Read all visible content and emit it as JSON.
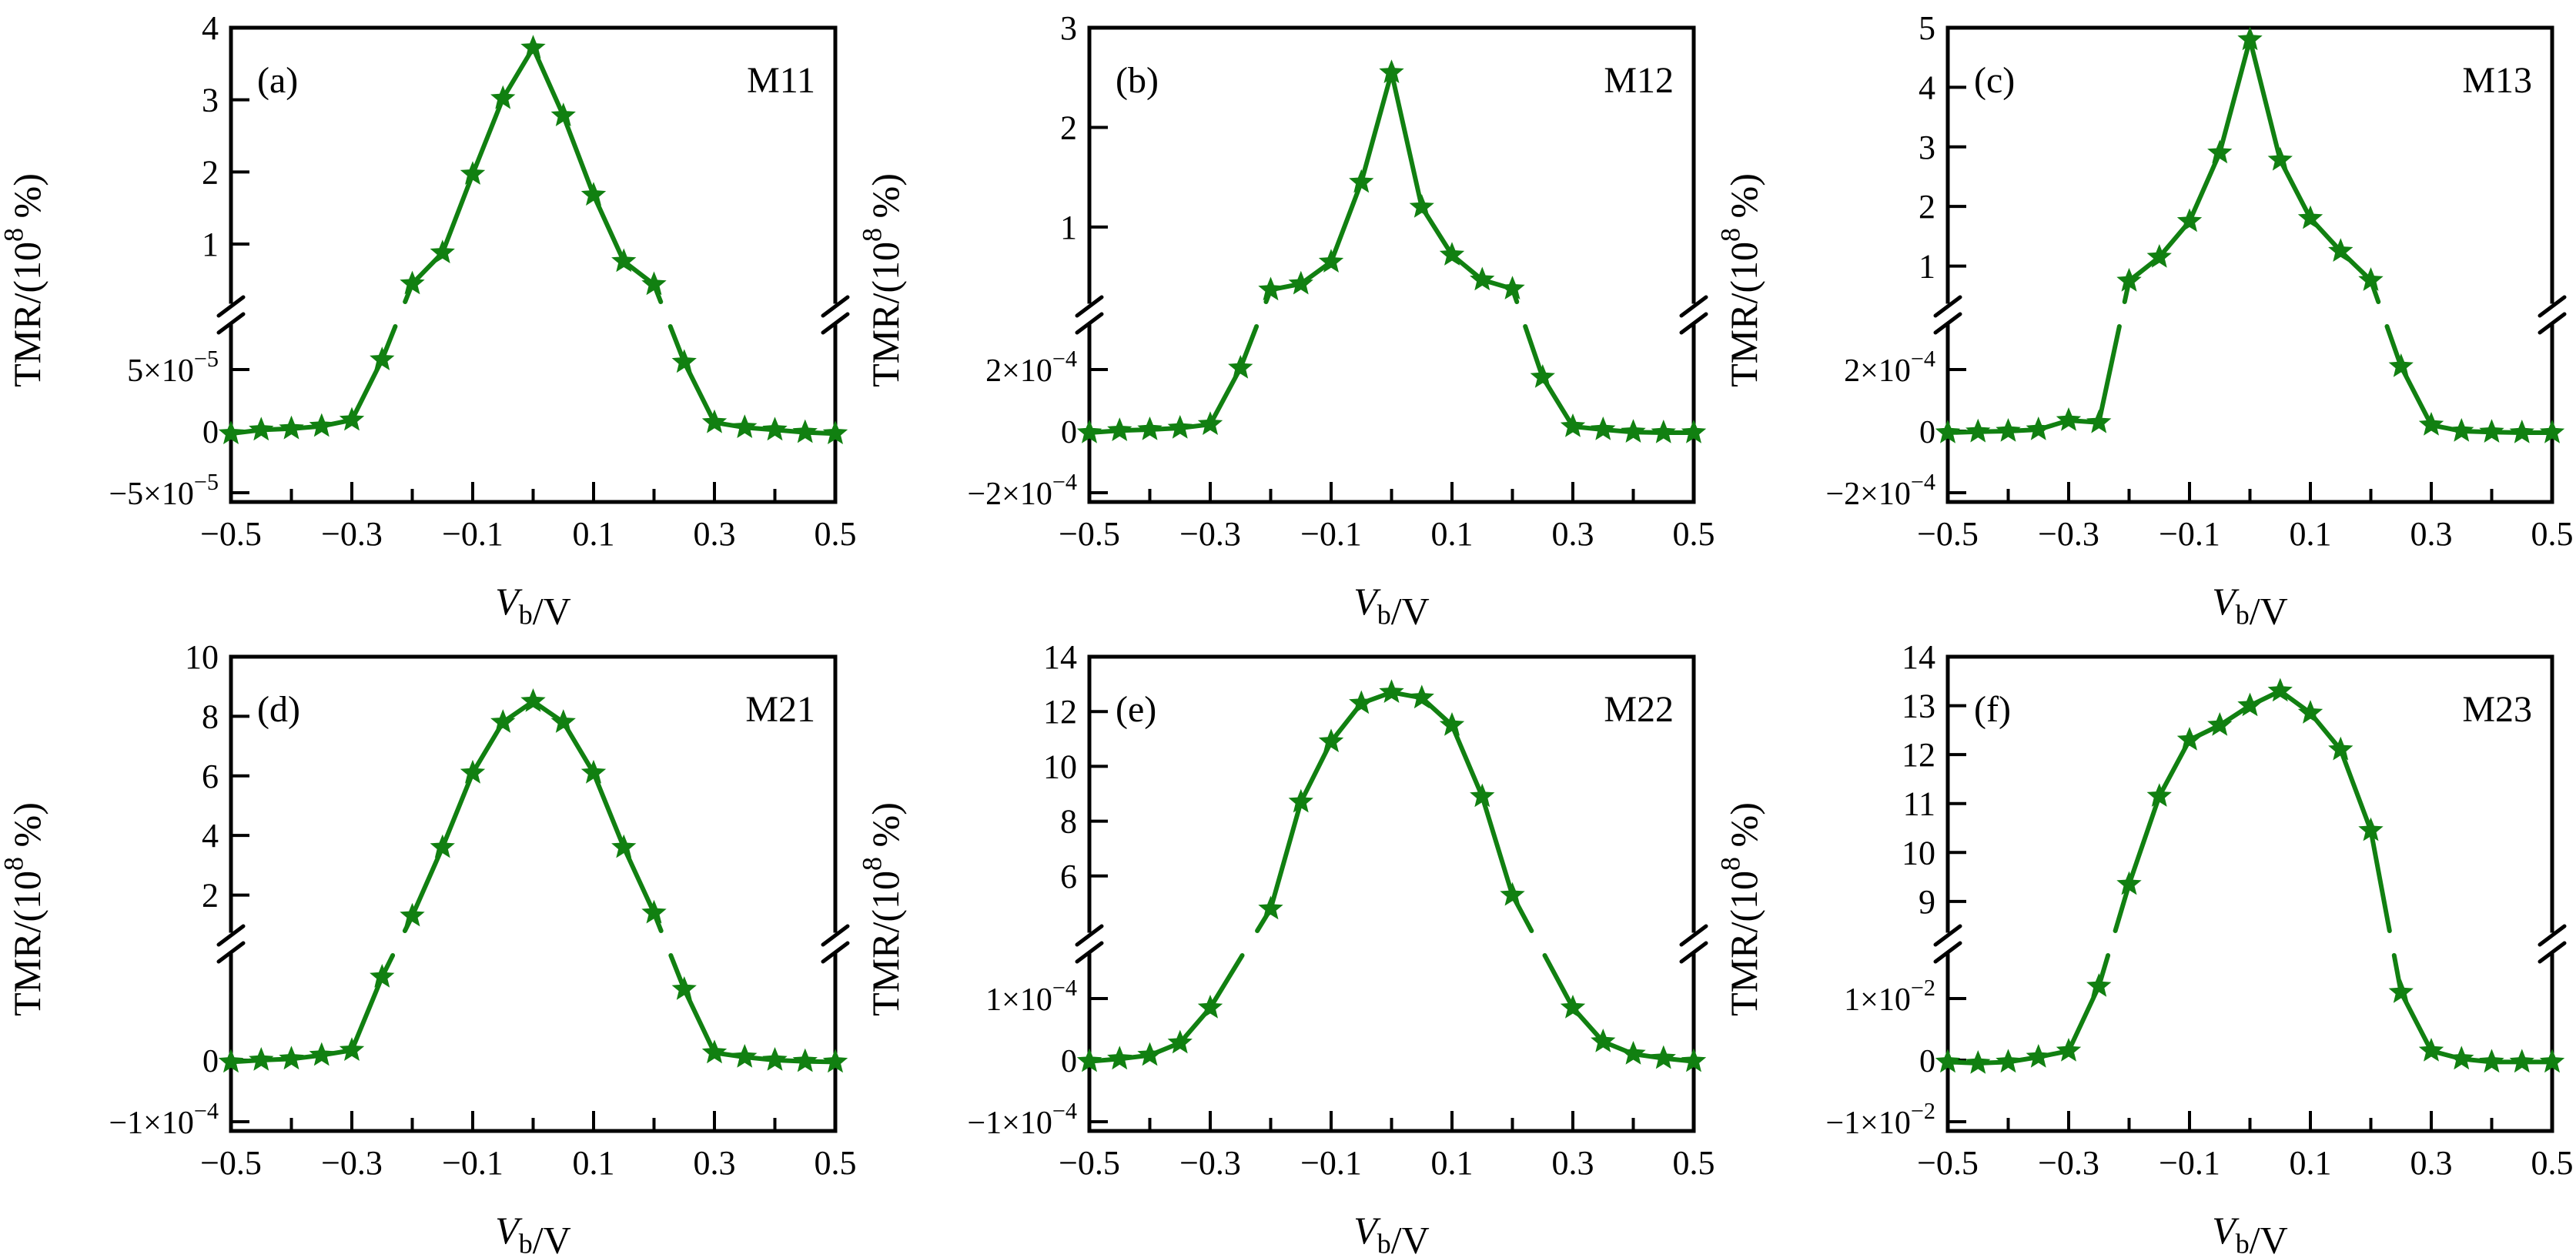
{
  "figure": {
    "background": "#ffffff",
    "axis_color": "#000000",
    "series_color": "#118011"
  },
  "shared": {
    "x_range": [
      -0.5,
      0.5
    ],
    "x_tick_step": 0.1,
    "x_major_ticks": [
      -0.5,
      -0.3,
      -0.1,
      0.1,
      0.3,
      0.5
    ],
    "x_major_labels": [
      "−0.5",
      "−0.3",
      "−0.1",
      "0.1",
      "0.3",
      "0.5"
    ],
    "xlabel_parts": [
      {
        "text": "V",
        "italic": true
      },
      {
        "text": "b",
        "sub": true
      },
      {
        "text": "/V"
      }
    ],
    "ylabel": "TMR/(10^{8} %)",
    "legend": "none",
    "grid": "off"
  },
  "chart_data": {
    "type": "line",
    "marker": "star",
    "axis_style": "broken-y",
    "x": [
      -0.5,
      -0.45,
      -0.4,
      -0.35,
      -0.3,
      -0.25,
      -0.2,
      -0.15,
      -0.1,
      -0.05,
      0,
      0.05,
      0.1,
      0.15,
      0.2,
      0.25,
      0.3,
      0.35,
      0.4,
      0.45,
      0.5
    ],
    "panels": [
      {
        "tag": "(a)",
        "name": "M11",
        "upper_max": 4,
        "upper_break_value": 0.2,
        "upper_ticks": [
          1,
          2,
          3,
          4
        ],
        "upper_tick_labels": [
          "1",
          "2",
          "3",
          "4"
        ],
        "lower_scale": 5e-05,
        "lower_ticks": [
          {
            "value": 5e-05,
            "label": "5×10^{−5}"
          },
          {
            "value": 0,
            "label": "0"
          },
          {
            "value": -5e-05,
            "label": "−5×10^{−5}"
          }
        ],
        "y": [
          -2e-06,
          1e-06,
          2e-06,
          4e-06,
          9e-06,
          5.8e-05,
          0.45,
          0.88,
          1.97,
          3.02,
          3.72,
          2.78,
          1.68,
          0.76,
          0.44,
          5.6e-05,
          7e-06,
          3e-06,
          1e-06,
          -1e-06,
          -2e-06
        ]
      },
      {
        "tag": "(b)",
        "name": "M12",
        "upper_max": 3,
        "upper_break_value": 0.25,
        "upper_ticks": [
          1,
          2,
          3
        ],
        "upper_tick_labels": [
          "1",
          "2",
          "3"
        ],
        "lower_scale": 0.0002,
        "lower_ticks": [
          {
            "value": 0.0002,
            "label": "2×10^{−4}"
          },
          {
            "value": 0,
            "label": "0"
          },
          {
            "value": -0.0002,
            "label": "−2×10^{−4}"
          }
        ],
        "y": [
          -5e-06,
          2e-06,
          5e-06,
          1e-05,
          2.2e-05,
          0.000205,
          0.37,
          0.43,
          0.65,
          1.45,
          2.55,
          1.2,
          0.72,
          0.47,
          0.38,
          0.000175,
          1.5e-05,
          5e-06,
          -3e-06,
          -5e-06,
          -5e-06
        ]
      },
      {
        "tag": "(c)",
        "name": "M13",
        "upper_max": 5,
        "upper_break_value": 0.4,
        "upper_ticks": [
          1,
          2,
          3,
          4,
          5
        ],
        "upper_tick_labels": [
          "1",
          "2",
          "3",
          "4",
          "5"
        ],
        "lower_scale": 0.0002,
        "lower_ticks": [
          {
            "value": 0.0002,
            "label": "2×10^{−4}"
          },
          {
            "value": 0,
            "label": "0"
          },
          {
            "value": -0.0002,
            "label": "−2×10^{−4}"
          }
        ],
        "y": [
          -5e-06,
          -2e-06,
          0,
          5e-06,
          3.5e-05,
          2.8e-05,
          0.75,
          1.15,
          1.75,
          2.9,
          4.8,
          2.78,
          1.8,
          1.25,
          0.76,
          0.00021,
          2e-05,
          0,
          -3e-06,
          -5e-06,
          -5e-06
        ]
      },
      {
        "tag": "(d)",
        "name": "M21",
        "upper_max": 10,
        "upper_break_value": 0.8,
        "upper_ticks": [
          2,
          4,
          6,
          8,
          10
        ],
        "upper_tick_labels": [
          "2",
          "4",
          "6",
          "8",
          "10"
        ],
        "lower_scale": 0.0001,
        "lower_ticks": [
          {
            "value": 0,
            "label": "0"
          },
          {
            "value": -0.0001,
            "label": "−1×10^{−4}"
          }
        ],
        "y": [
          -3e-06,
          0,
          2e-06,
          8e-06,
          1.6e-05,
          0.000135,
          1.3,
          3.6,
          6.1,
          7.8,
          8.5,
          7.8,
          6.1,
          3.6,
          1.4,
          0.000115,
          1.2e-05,
          5e-06,
          0,
          -2e-06,
          -3e-06
        ]
      },
      {
        "tag": "(e)",
        "name": "M22",
        "upper_max": 14,
        "upper_break_value": 4.0,
        "upper_ticks": [
          6,
          8,
          10,
          12,
          14
        ],
        "upper_tick_labels": [
          "6",
          "8",
          "10",
          "12",
          "14"
        ],
        "lower_scale": 0.0001,
        "lower_ticks": [
          {
            "value": 0.0001,
            "label": "1×10^{−4}"
          },
          {
            "value": 0,
            "label": "0"
          },
          {
            "value": -0.0001,
            "label": "−1×10^{−4}"
          }
        ],
        "y": [
          -2e-06,
          2e-06,
          8e-06,
          2.8e-05,
          8.5e-05,
          null,
          4.8,
          8.7,
          10.9,
          12.3,
          12.7,
          12.5,
          11.5,
          8.9,
          5.3,
          null,
          8.5e-05,
          3e-05,
          1e-05,
          3e-06,
          -2e-06
        ]
      },
      {
        "tag": "(f)",
        "name": "M23",
        "upper_max": 14,
        "upper_break_value": 8.4,
        "upper_ticks": [
          9,
          10,
          11,
          12,
          13,
          14
        ],
        "upper_tick_labels": [
          "9",
          "10",
          "11",
          "12",
          "13",
          "14"
        ],
        "lower_scale": 0.01,
        "lower_ticks": [
          {
            "value": 0.01,
            "label": "1×10^{−2}"
          },
          {
            "value": 0,
            "label": "0"
          },
          {
            "value": -0.01,
            "label": "−1×10^{−2}"
          }
        ],
        "y": [
          -0.0003,
          -0.0005,
          -0.0003,
          0.0005,
          0.0015,
          0.012,
          9.35,
          11.15,
          12.3,
          12.6,
          13.0,
          13.3,
          12.85,
          12.1,
          10.45,
          0.011,
          0.0015,
          0.0002,
          -0.0003,
          -0.0003,
          -0.0003
        ]
      }
    ]
  }
}
